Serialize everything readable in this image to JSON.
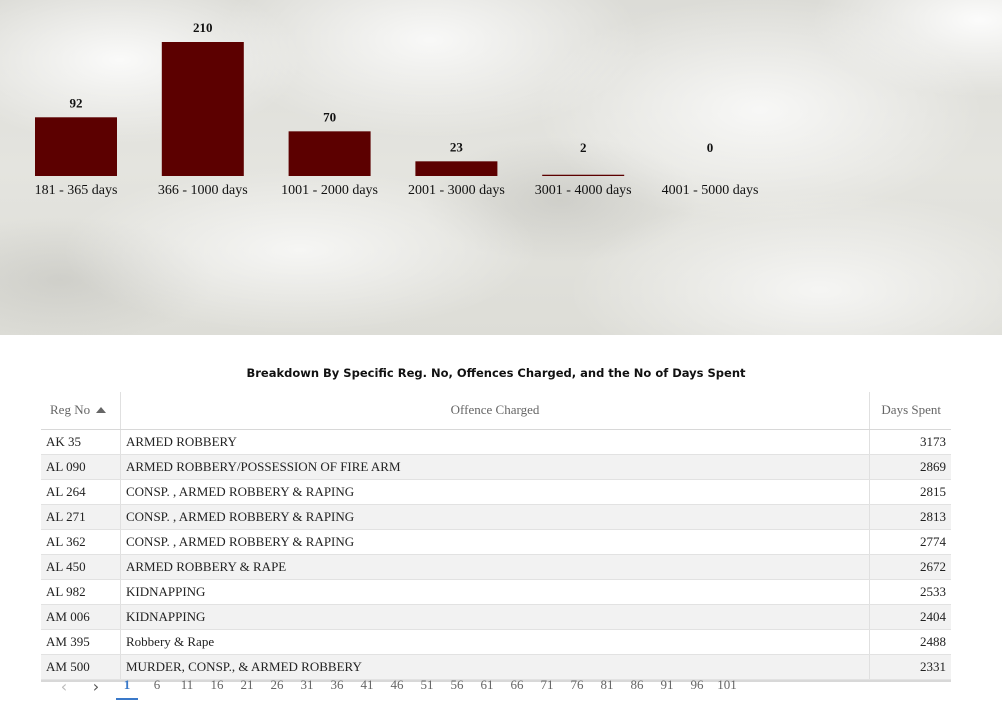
{
  "chart_data": {
    "type": "bar",
    "categories": [
      "181 - 365 days",
      "366 - 1000 days",
      "1001 - 2000 days",
      "2001 - 3000 days",
      "3001 - 4000 days",
      "4001 - 5000 days"
    ],
    "values": [
      92,
      210,
      70,
      23,
      2,
      0
    ],
    "title": "",
    "xlabel": "",
    "ylabel": "",
    "ylim": [
      0,
      210
    ],
    "bar_color": "#5c0000"
  },
  "table": {
    "title": "Breakdown By Specific Reg. No, Offences Charged, and the No of Days Spent",
    "columns": [
      "Reg No",
      "Offence Charged",
      "Days Spent"
    ],
    "rows": [
      {
        "reg": "AK 35",
        "offence": "ARMED ROBBERY",
        "days": "3173"
      },
      {
        "reg": "AL 090",
        "offence": "ARMED ROBBERY/POSSESSION OF FIRE ARM",
        "days": "2869"
      },
      {
        "reg": "AL 264",
        "offence": "CONSP. , ARMED ROBBERY & RAPING",
        "days": "2815"
      },
      {
        "reg": "AL 271",
        "offence": "CONSP. , ARMED ROBBERY & RAPING",
        "days": "2813"
      },
      {
        "reg": "AL 362",
        "offence": "CONSP. , ARMED ROBBERY & RAPING",
        "days": "2774"
      },
      {
        "reg": "AL 450",
        "offence": "ARMED ROBBERY & RAPE",
        "days": "2672"
      },
      {
        "reg": "AL 982",
        "offence": "KIDNAPPING",
        "days": "2533"
      },
      {
        "reg": "AM 006",
        "offence": "KIDNAPPING",
        "days": "2404"
      },
      {
        "reg": "AM 395",
        "offence": "Robbery & Rape",
        "days": "2488"
      },
      {
        "reg": "AM 500",
        "offence": "MURDER, CONSP., & ARMED ROBBERY",
        "days": "2331"
      }
    ]
  },
  "pager": {
    "prev_icon": "chevron-left-icon",
    "next_icon": "chevron-right-icon",
    "prev_glyph": "‹",
    "next_glyph": "›",
    "pages": [
      "1",
      "6",
      "11",
      "16",
      "21",
      "26",
      "31",
      "36",
      "41",
      "46",
      "51",
      "56",
      "61",
      "66",
      "71",
      "76",
      "81",
      "86",
      "91",
      "96",
      "101"
    ],
    "active_page": "1",
    "accent_color": "#3a79c9"
  }
}
